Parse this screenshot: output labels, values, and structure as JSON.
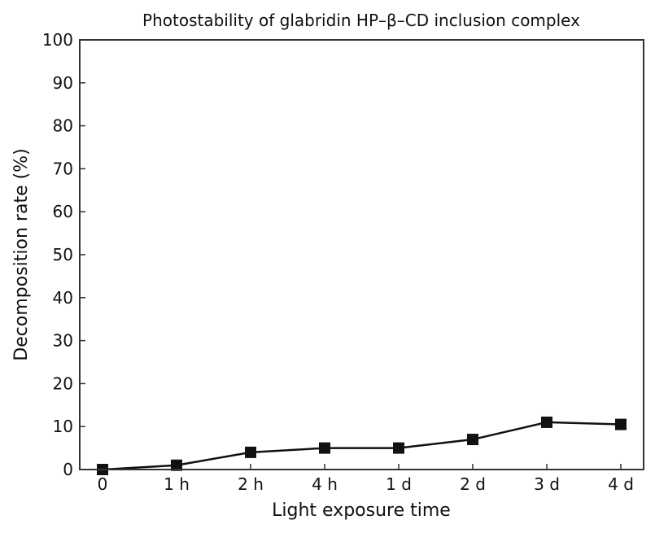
{
  "chart_data": {
    "type": "line",
    "title": "Photostability of glabridin HP–β–CD inclusion complex",
    "xlabel": "Light exposure time",
    "ylabel": "Decomposition rate (%)",
    "categories": [
      "0",
      "1 h",
      "2 h",
      "4 h",
      "1 d",
      "2 d",
      "3 d",
      "4 d"
    ],
    "series": [
      {
        "values": [
          0,
          1,
          4,
          5,
          5,
          7,
          11,
          10.5
        ]
      }
    ],
    "ylim": [
      0,
      100
    ],
    "yticks": [
      0,
      10,
      20,
      30,
      40,
      50,
      60,
      70,
      80,
      90,
      100
    ],
    "grid": false,
    "legend": "none",
    "marker": "square",
    "colors": {
      "line": "#111111",
      "marker": "#111111",
      "axes": "#333333"
    }
  }
}
